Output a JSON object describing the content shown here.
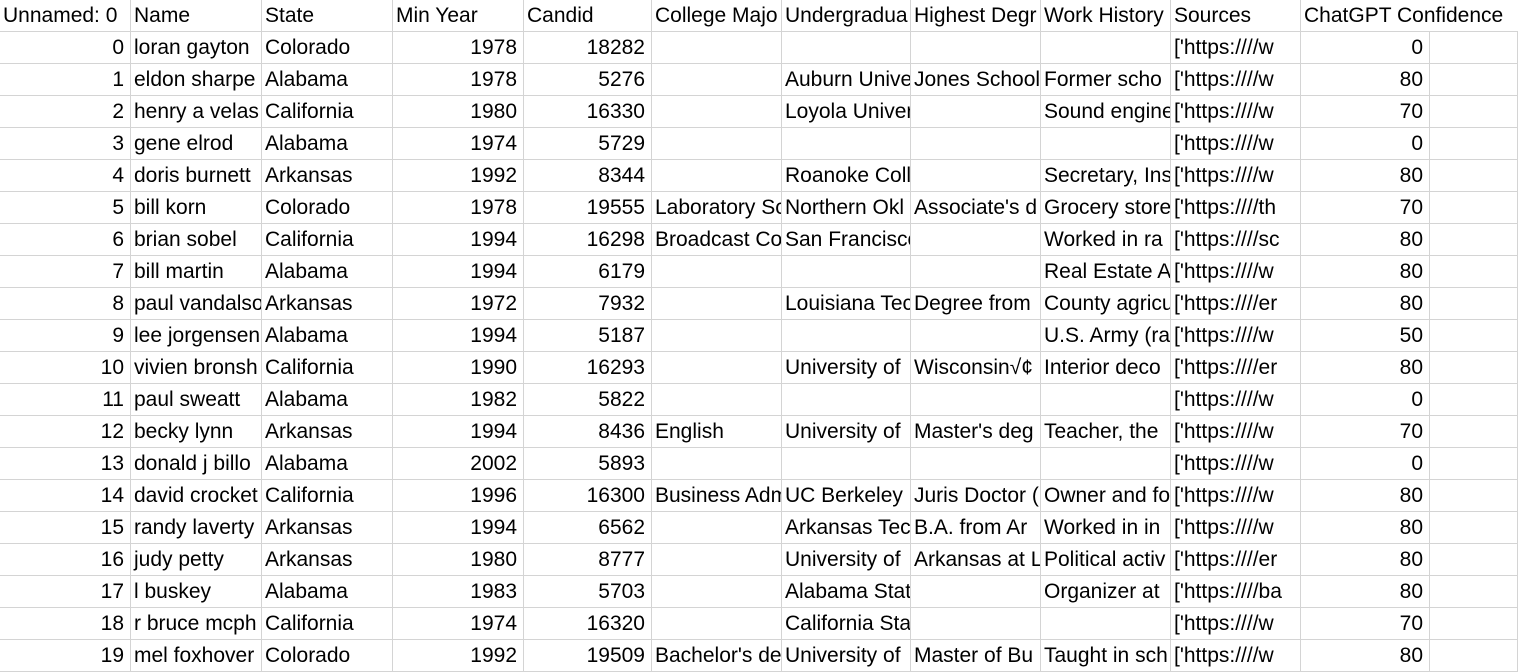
{
  "headers": [
    "Unnamed: 0",
    "Name",
    "State",
    "Min Year",
    "Candid",
    "College Majo",
    "Undergradua",
    "Highest Degr",
    "Work History",
    "Sources",
    "ChatGPT Confidence"
  ],
  "rows": [
    [
      "0",
      "loran gayton",
      "Colorado",
      "1978",
      "18282",
      "",
      "",
      "",
      "",
      "['https:////w",
      "0"
    ],
    [
      "1",
      "eldon sharpe",
      "Alabama",
      "1978",
      "5276",
      "",
      "Auburn Unive",
      "Jones School",
      "Former scho",
      "['https:////w",
      "80"
    ],
    [
      "2",
      "henry a velas",
      "California",
      "1980",
      "16330",
      "",
      "Loyola University",
      "",
      "Sound engine",
      "['https:////w",
      "70"
    ],
    [
      "3",
      "gene elrod",
      "Alabama",
      "1974",
      "5729",
      "",
      "",
      "",
      "",
      "['https:////w",
      "0"
    ],
    [
      "4",
      "doris burnett",
      "Arkansas",
      "1992",
      "8344",
      "",
      "Roanoke College",
      "",
      "Secretary, Ins",
      "['https:////w",
      "80"
    ],
    [
      "5",
      "bill korn",
      "Colorado",
      "1978",
      "19555",
      "Laboratory Sc",
      "Northern Okl",
      "Associate's d",
      "Grocery store",
      "['https:////th",
      "70"
    ],
    [
      "6",
      "brian sobel",
      "California",
      "1994",
      "16298",
      "Broadcast Co",
      "San Francisco State Unive",
      "",
      "Worked in ra",
      "['https:////sc",
      "80"
    ],
    [
      "7",
      "bill martin",
      "Alabama",
      "1994",
      "6179",
      "",
      "",
      "",
      "Real Estate A",
      "['https:////w",
      "80"
    ],
    [
      "8",
      "paul vandalso",
      "Arkansas",
      "1972",
      "7932",
      "",
      "Louisiana Tec",
      "Degree from",
      "County agricu",
      "['https:////er",
      "80"
    ],
    [
      "9",
      "lee jorgensen",
      "Alabama",
      "1994",
      "5187",
      "",
      "",
      "",
      "U.S. Army (ra",
      "['https:////w",
      "50"
    ],
    [
      "10",
      "vivien bronsh",
      "California",
      "1990",
      "16293",
      "",
      "University of",
      "Wisconsin√¢",
      "Interior deco",
      "['https:////er",
      "80"
    ],
    [
      "11",
      "paul sweatt",
      "Alabama",
      "1982",
      "5822",
      "",
      "",
      "",
      "",
      "['https:////w",
      "0"
    ],
    [
      "12",
      "becky lynn",
      "Arkansas",
      "1994",
      "8436",
      "English",
      "University of",
      "Master's deg",
      "Teacher, the",
      "['https:////w",
      "70"
    ],
    [
      "13",
      "donald j billo",
      "Alabama",
      "2002",
      "5893",
      "",
      "",
      "",
      "",
      "['https:////w",
      "0"
    ],
    [
      "14",
      "david crocket",
      "California",
      "1996",
      "16300",
      "Business Adm",
      "UC Berkeley",
      "Juris Doctor (",
      "Owner and fo",
      "['https:////w",
      "80"
    ],
    [
      "15",
      "randy laverty",
      "Arkansas",
      "1994",
      "6562",
      "",
      "Arkansas Tec",
      "B.A. from Ar",
      "Worked in in",
      "['https:////w",
      "80"
    ],
    [
      "16",
      "judy petty",
      "Arkansas",
      "1980",
      "8777",
      "",
      "University of",
      "Arkansas at L",
      "Political activ",
      "['https:////er",
      "80"
    ],
    [
      "17",
      "l buskey",
      "Alabama",
      "1983",
      "5703",
      "",
      "Alabama State University",
      "",
      "Organizer at",
      "['https:////ba",
      "80"
    ],
    [
      "18",
      "r bruce mcph",
      "California",
      "1974",
      "16320",
      "",
      "California State Polytechnic University,",
      "",
      "",
      "['https:////w",
      "70"
    ],
    [
      "19",
      "mel foxhover",
      "Colorado",
      "1992",
      "19509",
      "Bachelor's de",
      "University of",
      "Master of Bu",
      "Taught in sch",
      "['https:////w",
      "80"
    ]
  ]
}
